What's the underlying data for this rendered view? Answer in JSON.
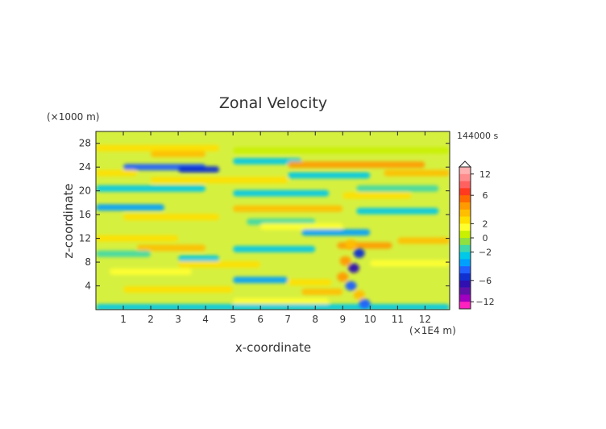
{
  "chart_data": {
    "type": "heatmap",
    "title": "Zonal Velocity",
    "xlabel": "x-coordinate",
    "ylabel": "z-coordinate",
    "x_unit": "(×1E4 m)",
    "y_unit": "(×1000 m)",
    "time_label": "144000 s",
    "xlim": [
      0,
      12.9
    ],
    "ylim": [
      0,
      30
    ],
    "x_ticks": [
      "1",
      "2",
      "3",
      "4",
      "5",
      "6",
      "7",
      "8",
      "9",
      "10",
      "11",
      "12"
    ],
    "y_ticks": [
      "4",
      "8",
      "12",
      "16",
      "20",
      "24",
      "28"
    ],
    "colorbar": {
      "tick_labels": [
        "12",
        "6",
        "2",
        "0",
        "-2",
        "-6",
        "-12"
      ],
      "tick_values": [
        12,
        6,
        2,
        0,
        -2,
        -6,
        -12
      ],
      "levels": [
        14,
        12,
        10,
        8,
        6,
        5,
        4,
        3,
        2,
        1,
        0,
        -1,
        -2,
        -3,
        -4,
        -5,
        -6,
        -8,
        -10,
        -12,
        -14
      ],
      "colors": [
        "#ffb0b0",
        "#ff8c8c",
        "#ff6060",
        "#ff3a1e",
        "#ff6a00",
        "#ff9a00",
        "#ffbe00",
        "#ffe000",
        "#ffff30",
        "#c8f000",
        "#90e040",
        "#40d8a8",
        "#00c8e8",
        "#00a0ff",
        "#2060ff",
        "#1030d0",
        "#3010b0",
        "#6010a8",
        "#a000c0",
        "#ff20c0"
      ]
    },
    "colors": {
      "bands_positive": "#ff8c3a",
      "bands_negative": "#33c4e0",
      "background": "#d6f040",
      "weak_positive": "#ffff40"
    },
    "bands": [
      {
        "z": 27.2,
        "x0": 0.0,
        "x1": 4.5,
        "v": 3
      },
      {
        "z": 26.8,
        "x0": 5.0,
        "x1": 12.9,
        "v": 1
      },
      {
        "z": 26.2,
        "x0": 2.0,
        "x1": 4.0,
        "v": 4
      },
      {
        "z": 25.0,
        "x0": 5.0,
        "x1": 7.5,
        "v": -2
      },
      {
        "z": 24.4,
        "x0": 7.0,
        "x1": 12.0,
        "v": 5
      },
      {
        "z": 24.0,
        "x0": 1.0,
        "x1": 4.0,
        "v": -4
      },
      {
        "z": 23.6,
        "x0": 3.0,
        "x1": 4.5,
        "v": -5
      },
      {
        "z": 23.0,
        "x0": 0.0,
        "x1": 1.5,
        "v": 3
      },
      {
        "z": 23.0,
        "x0": 10.5,
        "x1": 12.9,
        "v": 4
      },
      {
        "z": 22.6,
        "x0": 7.0,
        "x1": 10.0,
        "v": -2
      },
      {
        "z": 21.8,
        "x0": 2.0,
        "x1": 7.0,
        "v": 3
      },
      {
        "z": 20.4,
        "x0": 0.0,
        "x1": 4.0,
        "v": -2
      },
      {
        "z": 20.4,
        "x0": 9.5,
        "x1": 12.5,
        "v": -1
      },
      {
        "z": 19.6,
        "x0": 5.0,
        "x1": 8.5,
        "v": -2
      },
      {
        "z": 19.2,
        "x0": 9.0,
        "x1": 11.5,
        "v": 3
      },
      {
        "z": 17.2,
        "x0": 0.0,
        "x1": 2.5,
        "v": -3
      },
      {
        "z": 17.0,
        "x0": 5.0,
        "x1": 9.0,
        "v": 4
      },
      {
        "z": 16.6,
        "x0": 9.5,
        "x1": 12.5,
        "v": -2
      },
      {
        "z": 15.6,
        "x0": 1.0,
        "x1": 4.5,
        "v": 3
      },
      {
        "z": 14.8,
        "x0": 5.5,
        "x1": 8.0,
        "v": -1
      },
      {
        "z": 14.0,
        "x0": 6.0,
        "x1": 9.0,
        "v": 2
      },
      {
        "z": 13.0,
        "x0": 7.5,
        "x1": 10.0,
        "v": -3
      },
      {
        "z": 12.0,
        "x0": 0.0,
        "x1": 3.0,
        "v": 3
      },
      {
        "z": 11.6,
        "x0": 11.0,
        "x1": 12.9,
        "v": 4
      },
      {
        "z": 10.4,
        "x0": 1.5,
        "x1": 4.0,
        "v": 4
      },
      {
        "z": 10.8,
        "x0": 8.8,
        "x1": 10.8,
        "v": 5
      },
      {
        "z": 10.2,
        "x0": 5.0,
        "x1": 8.0,
        "v": -2
      },
      {
        "z": 9.4,
        "x0": 0.0,
        "x1": 2.0,
        "v": -1
      },
      {
        "z": 8.6,
        "x0": 3.0,
        "x1": 4.5,
        "v": -2
      },
      {
        "z": 7.6,
        "x0": 3.0,
        "x1": 6.0,
        "v": 3
      },
      {
        "z": 7.8,
        "x0": 10.0,
        "x1": 12.9,
        "v": 2
      },
      {
        "z": 6.4,
        "x0": 0.5,
        "x1": 3.5,
        "v": 2
      },
      {
        "z": 5.0,
        "x0": 5.0,
        "x1": 7.0,
        "v": -3
      },
      {
        "z": 4.6,
        "x0": 7.0,
        "x1": 8.6,
        "v": 3
      },
      {
        "z": 3.4,
        "x0": 1.0,
        "x1": 5.0,
        "v": 3
      },
      {
        "z": 3.0,
        "x0": 7.5,
        "x1": 9.0,
        "v": 4
      },
      {
        "z": 1.4,
        "x0": 5.0,
        "x1": 8.5,
        "v": 2
      },
      {
        "z": 0.4,
        "x0": 0.0,
        "x1": 12.9,
        "v": -2
      }
    ],
    "plume": [
      {
        "z": 11.0,
        "x": 9.3,
        "v": 4
      },
      {
        "z": 9.5,
        "x": 9.6,
        "v": -5
      },
      {
        "z": 8.2,
        "x": 9.1,
        "v": 5
      },
      {
        "z": 7.0,
        "x": 9.4,
        "v": -6
      },
      {
        "z": 5.5,
        "x": 9.0,
        "v": 5
      },
      {
        "z": 4.0,
        "x": 9.3,
        "v": -4
      },
      {
        "z": 2.5,
        "x": 9.6,
        "v": 4
      },
      {
        "z": 1.0,
        "x": 9.8,
        "v": -4
      }
    ]
  }
}
